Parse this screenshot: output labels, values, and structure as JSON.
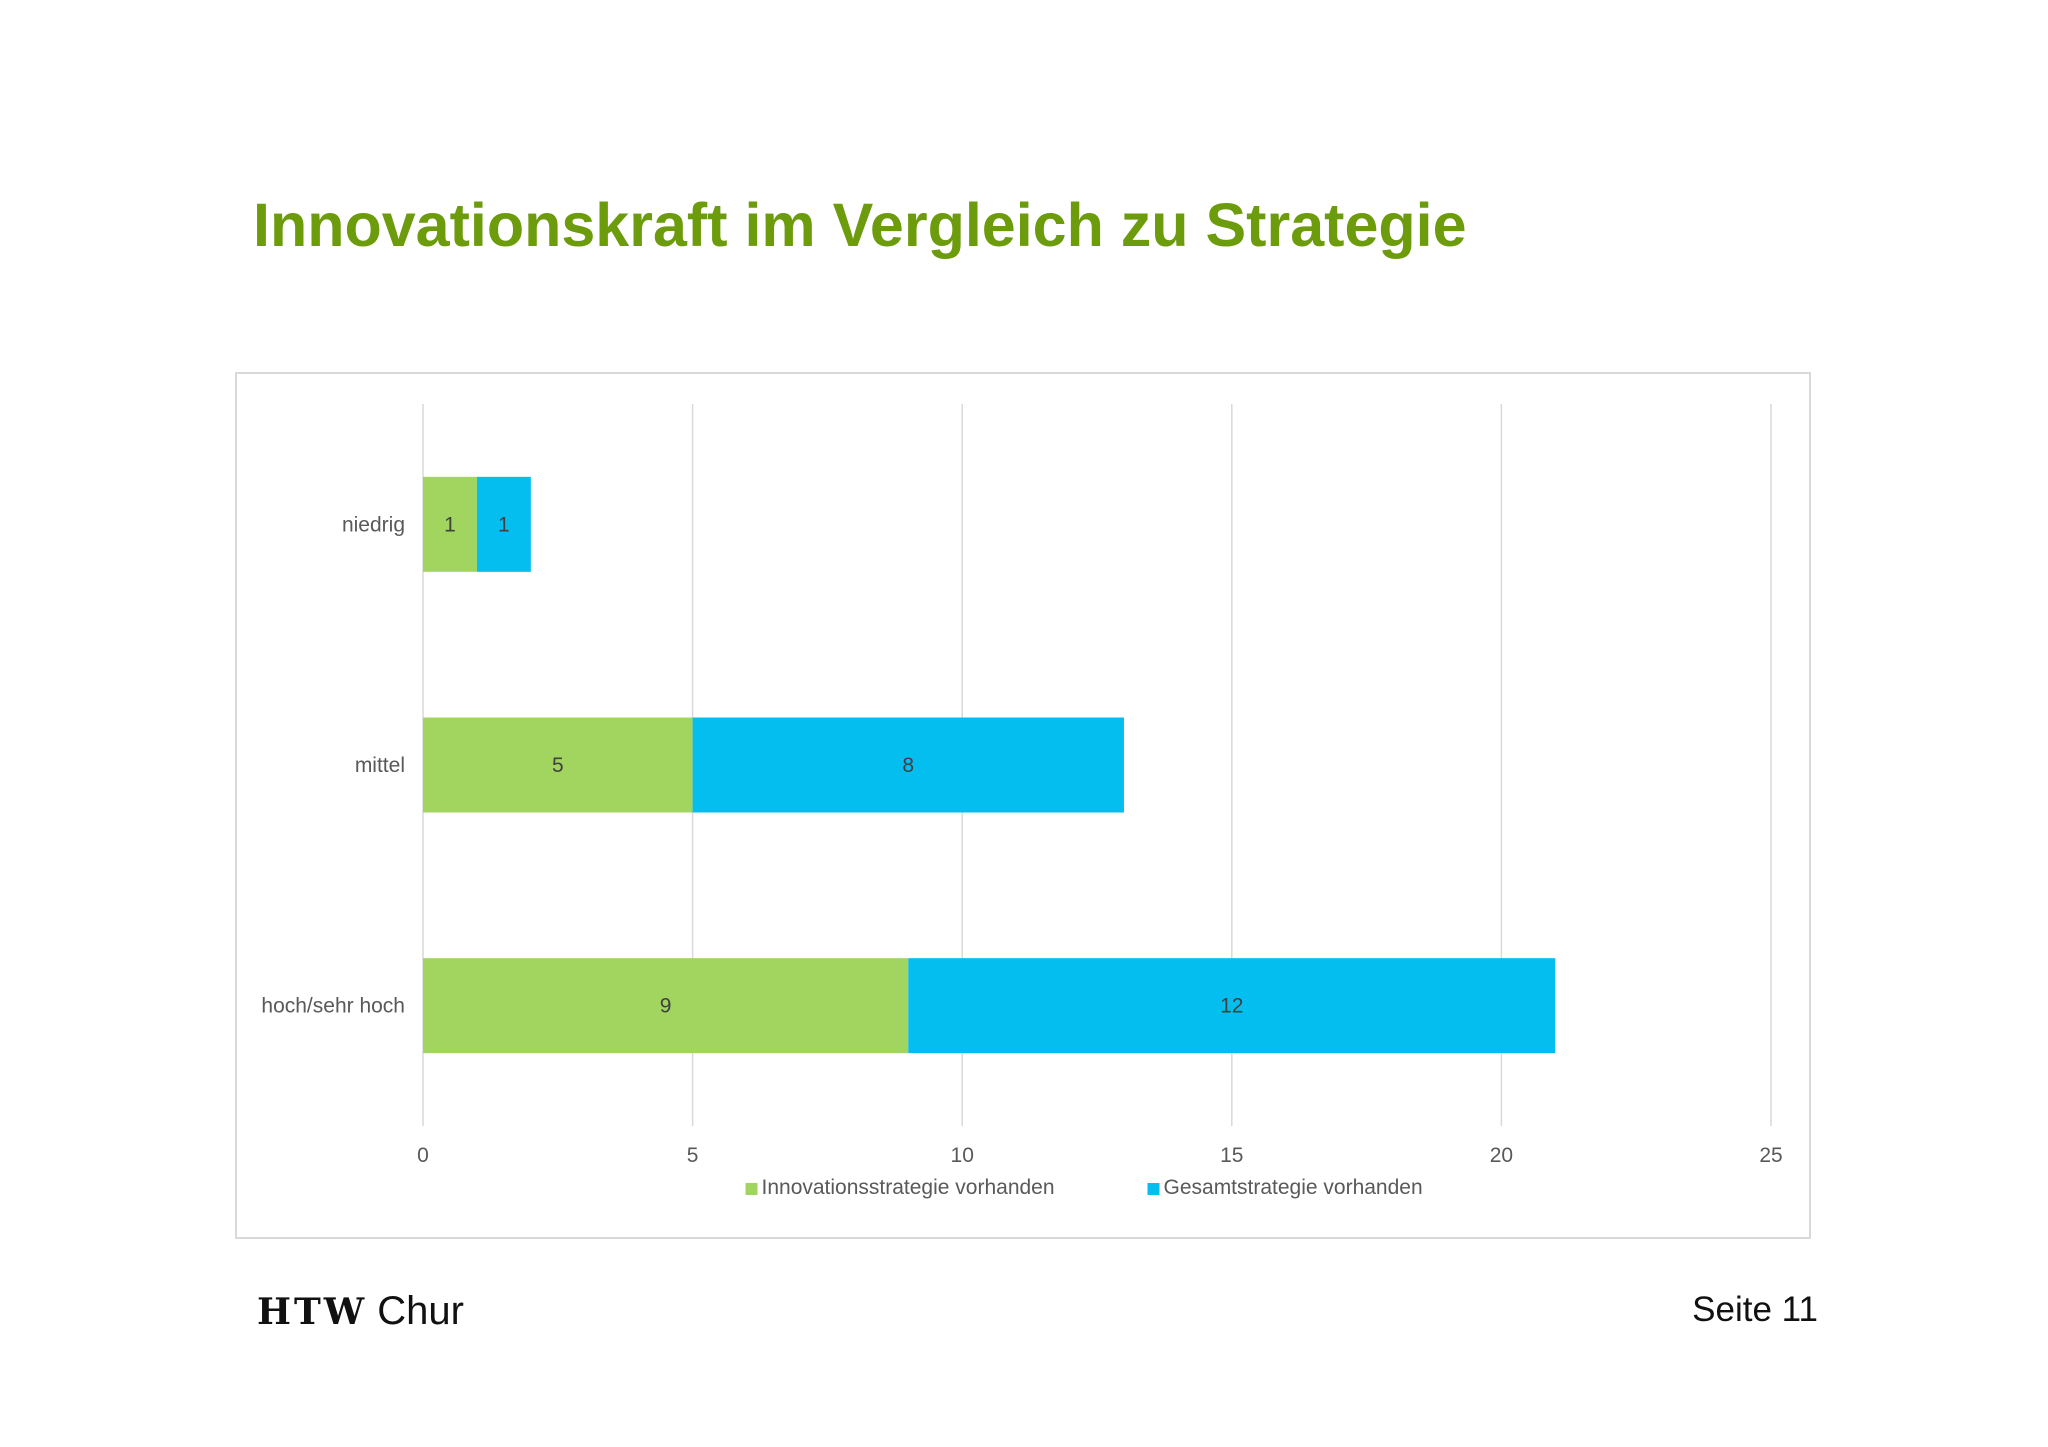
{
  "slide": {
    "title": "Innovationskraft im Vergleich zu Strategie",
    "logo_bold": "HTW",
    "logo_light": "Chur",
    "page_label": "Seite 11"
  },
  "colors": {
    "title": "#6c9b0c",
    "series_innovation": "#a1d55f",
    "series_gesamt": "#05bef0",
    "gridline": "#d9d9d9",
    "axis_text": "#595959"
  },
  "chart_data": {
    "type": "bar",
    "orientation": "horizontal",
    "stacked": true,
    "categories": [
      "niedrig",
      "mittel",
      "hoch/sehr hoch"
    ],
    "series": [
      {
        "name": "Innovationsstrategie vorhanden",
        "values": [
          1,
          5,
          9
        ],
        "color": "#a1d55f"
      },
      {
        "name": "Gesamtstrategie vorhanden",
        "values": [
          1,
          8,
          12
        ],
        "color": "#05bef0"
      }
    ],
    "xlim": [
      0,
      25
    ],
    "xticks": [
      0,
      5,
      10,
      15,
      20,
      25
    ],
    "data_labels": true,
    "grid": true,
    "legend": "bottom",
    "title": "",
    "xlabel": "",
    "ylabel": ""
  }
}
